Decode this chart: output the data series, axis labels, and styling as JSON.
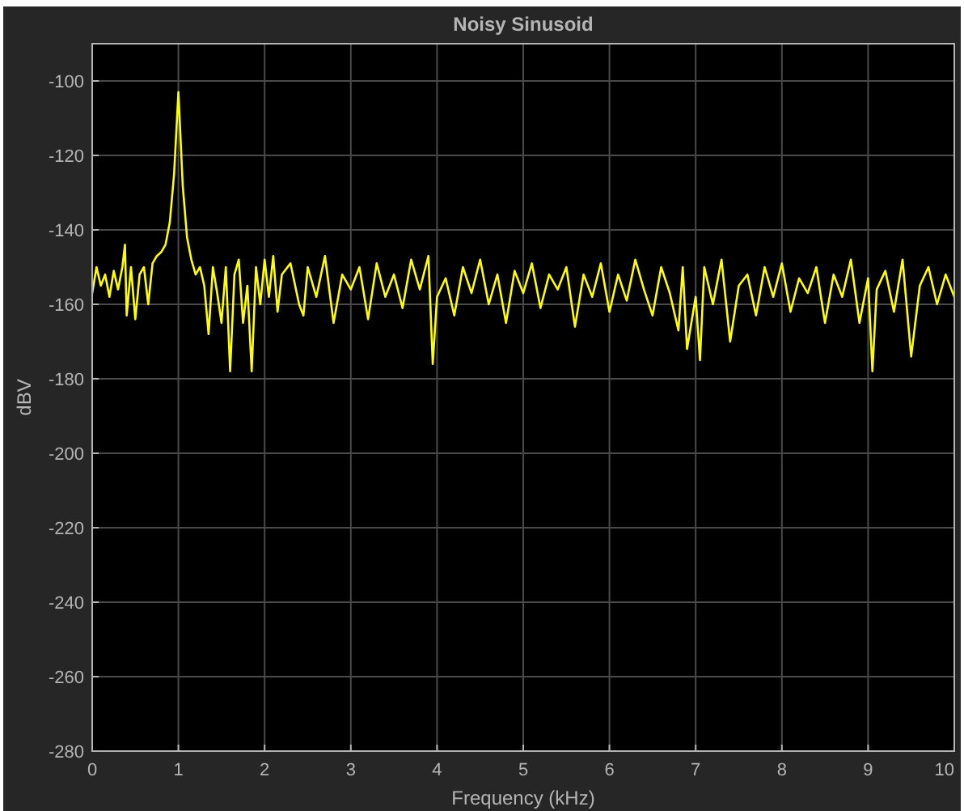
{
  "chart_data": {
    "type": "line",
    "title": "Noisy Sinusoid",
    "xlabel": "Frequency (kHz)",
    "ylabel": "dBV",
    "xlim": [
      0,
      10
    ],
    "xticks": [
      0,
      1,
      2,
      3,
      4,
      5,
      6,
      7,
      8,
      9,
      10
    ],
    "ylim": [
      -280,
      -90
    ],
    "yticks": [
      -280,
      -260,
      -240,
      -220,
      -200,
      -180,
      -160,
      -140,
      -120,
      -100
    ],
    "grid": true,
    "marker": "none",
    "line_style": "solid",
    "series": [
      {
        "color": "#ffff00",
        "x": [
          0,
          0.05,
          0.1,
          0.15,
          0.2,
          0.25,
          0.3,
          0.35,
          0.38,
          0.4,
          0.45,
          0.5,
          0.55,
          0.6,
          0.65,
          0.7,
          0.75,
          0.8,
          0.85,
          0.9,
          0.95,
          1.0,
          1.05,
          1.1,
          1.15,
          1.2,
          1.25,
          1.3,
          1.35,
          1.4,
          1.45,
          1.5,
          1.55,
          1.6,
          1.65,
          1.7,
          1.75,
          1.8,
          1.85,
          1.9,
          1.95,
          2.0,
          2.05,
          2.1,
          2.15,
          2.2,
          2.3,
          2.4,
          2.45,
          2.5,
          2.6,
          2.7,
          2.8,
          2.9,
          3.0,
          3.1,
          3.2,
          3.3,
          3.4,
          3.5,
          3.6,
          3.7,
          3.8,
          3.9,
          3.95,
          4.0,
          4.1,
          4.2,
          4.3,
          4.4,
          4.5,
          4.6,
          4.7,
          4.8,
          4.9,
          5.0,
          5.1,
          5.2,
          5.3,
          5.4,
          5.5,
          5.6,
          5.7,
          5.8,
          5.9,
          6.0,
          6.1,
          6.2,
          6.3,
          6.4,
          6.5,
          6.6,
          6.7,
          6.8,
          6.85,
          6.9,
          7.0,
          7.05,
          7.1,
          7.2,
          7.3,
          7.4,
          7.5,
          7.6,
          7.7,
          7.8,
          7.9,
          8.0,
          8.1,
          8.2,
          8.3,
          8.4,
          8.5,
          8.6,
          8.7,
          8.8,
          8.9,
          9.0,
          9.05,
          9.1,
          9.2,
          9.3,
          9.4,
          9.5,
          9.6,
          9.7,
          9.8,
          9.9,
          10
        ],
        "values": [
          -157,
          -150,
          -155,
          -152,
          -158,
          -151,
          -156,
          -150,
          -144,
          -163,
          -150,
          -164,
          -152,
          -150,
          -160,
          -149,
          -147,
          -146,
          -144,
          -138,
          -125,
          -103,
          -128,
          -142,
          -148,
          -152,
          -150,
          -155,
          -168,
          -150,
          -157,
          -165,
          -150,
          -178,
          -152,
          -148,
          -165,
          -155,
          -178,
          -150,
          -160,
          -148,
          -158,
          -147,
          -162,
          -152,
          -149,
          -160,
          -163,
          -150,
          -158,
          -147,
          -165,
          -152,
          -156,
          -150,
          -164,
          -149,
          -158,
          -152,
          -161,
          -148,
          -156,
          -147,
          -176,
          -158,
          -153,
          -163,
          -150,
          -157,
          -148,
          -160,
          -152,
          -165,
          -151,
          -157,
          -149,
          -161,
          -152,
          -156,
          -150,
          -166,
          -152,
          -158,
          -149,
          -162,
          -152,
          -159,
          -148,
          -156,
          -163,
          -150,
          -157,
          -167,
          -150,
          -172,
          -158,
          -175,
          -150,
          -160,
          -148,
          -170,
          -155,
          -152,
          -163,
          -150,
          -158,
          -149,
          -162,
          -153,
          -157,
          -150,
          -165,
          -152,
          -158,
          -148,
          -165,
          -153,
          -178,
          -156,
          -151,
          -162,
          -148,
          -174,
          -155,
          -150,
          -160,
          -152,
          -158
        ]
      }
    ]
  }
}
